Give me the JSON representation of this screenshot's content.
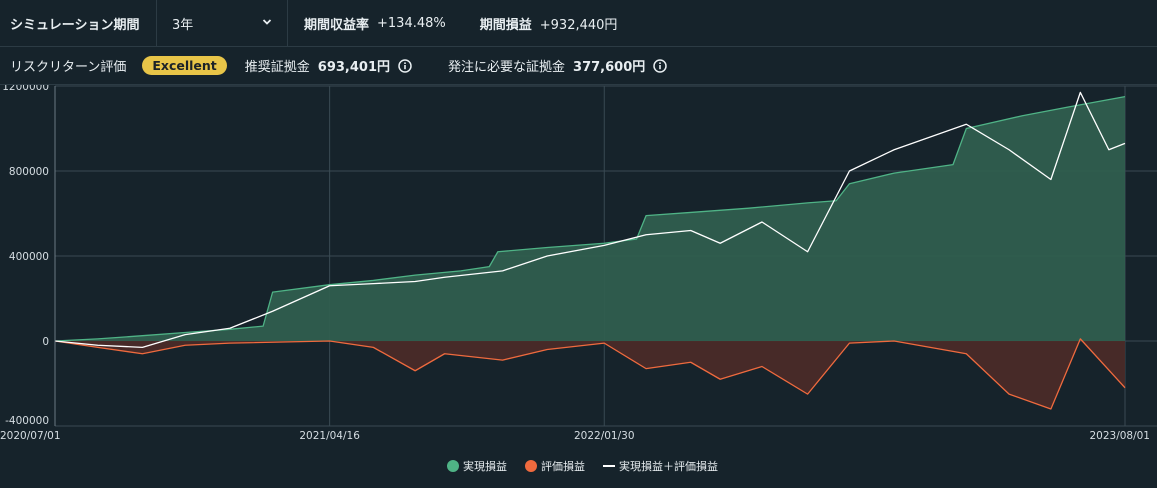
{
  "header": {
    "sim_label": "シミュレーション期間",
    "period_value": "3年",
    "return_label": "期間収益率",
    "return_value": "+134.48%",
    "pnl_label": "期間損益",
    "pnl_value": "+932,440円"
  },
  "risk": {
    "label": "リスクリターン評価",
    "badge": "Excellent",
    "recommended_label": "推奨証拠金",
    "recommended_value": "693,401円",
    "required_label": "発注に必要な証拠金",
    "required_value": "377,600円"
  },
  "colors": {
    "realized": "#4fb386",
    "valuation": "#ef6a3e",
    "total": "#ffffff",
    "realized_fill": "#2f5e4e",
    "valuation_fill": "#4a2b28",
    "badge": "#e8c548"
  },
  "chart_data": {
    "type": "area",
    "x_tick_labels": [
      "2020/07/01",
      "2021/04/16",
      "2022/01/30",
      "2023/08/01"
    ],
    "x_range": [
      "2020/07/01",
      "2023/08/01"
    ],
    "ylim": [
      -400000,
      1200000
    ],
    "y_tick_labels": [
      "1200000",
      "800000",
      "400000",
      "0",
      "-400000"
    ],
    "grid": true,
    "legend_position": "bottom",
    "series": [
      {
        "name": "実現損益",
        "x": [
          "2020/07/01",
          "2020/08/15",
          "2020/10/01",
          "2020/11/15",
          "2021/01/01",
          "2021/02/05",
          "2021/02/15",
          "2021/04/16",
          "2021/06/01",
          "2021/07/15",
          "2021/09/01",
          "2021/10/01",
          "2021/10/10",
          "2021/12/01",
          "2022/01/30",
          "2022/03/05",
          "2022/03/15",
          "2022/05/01",
          "2022/07/01",
          "2022/09/01",
          "2022/10/01",
          "2022/10/15",
          "2022/12/01",
          "2023/02/01",
          "2023/02/15",
          "2023/04/15",
          "2023/06/01",
          "2023/08/01"
        ],
        "values": [
          0,
          10000,
          25000,
          40000,
          55000,
          70000,
          230000,
          265000,
          285000,
          310000,
          330000,
          350000,
          420000,
          440000,
          460000,
          480000,
          590000,
          605000,
          625000,
          650000,
          660000,
          740000,
          790000,
          830000,
          1000000,
          1060000,
          1100000,
          1150000
        ]
      },
      {
        "name": "評価損益",
        "x": [
          "2020/07/01",
          "2020/08/15",
          "2020/10/01",
          "2020/11/15",
          "2021/01/01",
          "2021/04/16",
          "2021/06/01",
          "2021/07/15",
          "2021/08/15",
          "2021/10/15",
          "2021/12/01",
          "2022/01/30",
          "2022/03/15",
          "2022/05/01",
          "2022/06/01",
          "2022/07/15",
          "2022/09/01",
          "2022/10/15",
          "2022/12/01",
          "2023/02/15",
          "2023/04/01",
          "2023/05/15",
          "2023/06/15",
          "2023/08/01"
        ],
        "values": [
          0,
          -30000,
          -60000,
          -20000,
          -10000,
          0,
          -30000,
          -140000,
          -60000,
          -90000,
          -40000,
          -10000,
          -130000,
          -100000,
          -180000,
          -120000,
          -250000,
          -10000,
          0,
          -60000,
          -250000,
          -320000,
          10000,
          -220000
        ]
      },
      {
        "name": "実現損益＋評価損益",
        "x": [
          "2020/07/01",
          "2020/08/15",
          "2020/10/01",
          "2020/11/15",
          "2021/01/01",
          "2021/02/15",
          "2021/04/16",
          "2021/06/01",
          "2021/07/15",
          "2021/08/15",
          "2021/10/15",
          "2021/12/01",
          "2022/01/30",
          "2022/03/15",
          "2022/05/01",
          "2022/06/01",
          "2022/07/15",
          "2022/09/01",
          "2022/10/15",
          "2022/12/01",
          "2023/02/15",
          "2023/04/01",
          "2023/05/15",
          "2023/06/15",
          "2023/07/15",
          "2023/08/01"
        ],
        "values": [
          0,
          -20000,
          -30000,
          30000,
          60000,
          140000,
          260000,
          270000,
          280000,
          300000,
          330000,
          400000,
          450000,
          500000,
          520000,
          460000,
          560000,
          420000,
          800000,
          900000,
          1020000,
          900000,
          760000,
          1170000,
          900000,
          930000
        ]
      }
    ]
  }
}
